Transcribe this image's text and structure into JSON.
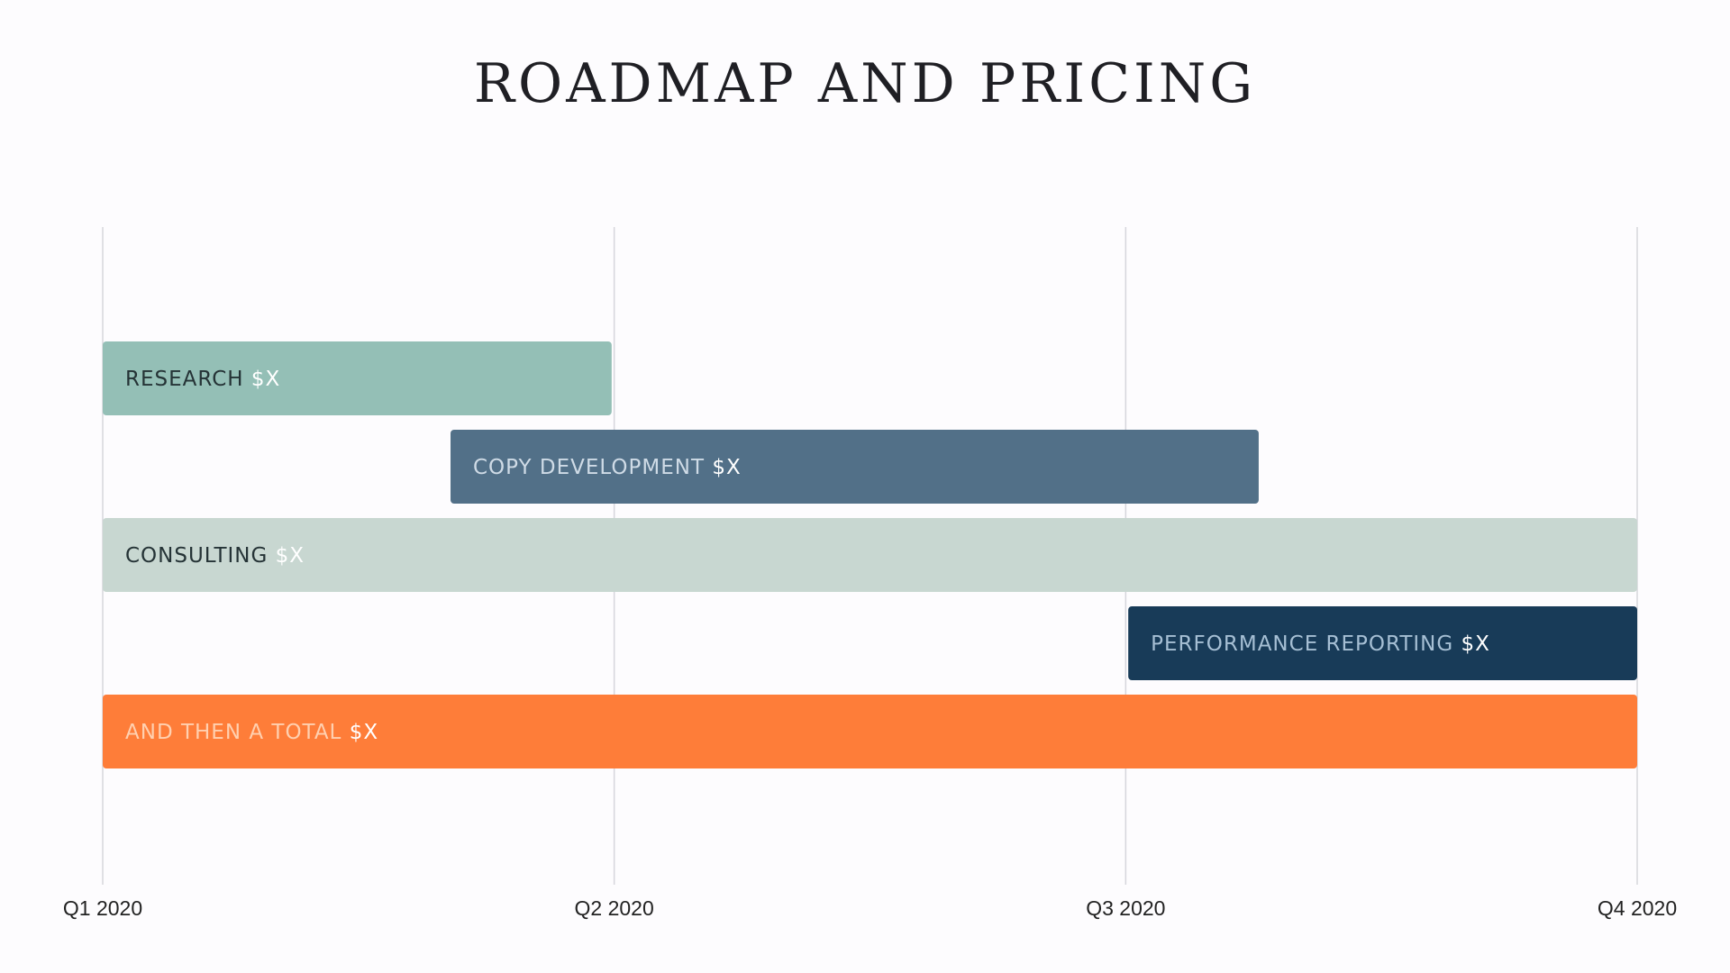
{
  "title": "ROADMAP AND PRICING",
  "chart_data": {
    "type": "gantt",
    "x_ticks": [
      "Q1 2020",
      "Q2 2020",
      "Q3 2020",
      "Q4 2020"
    ],
    "x_range": [
      0,
      3
    ],
    "grid": true,
    "tasks": [
      {
        "label": "RESEARCH",
        "price": "$X",
        "start": 0,
        "end": 0.995,
        "color": "#94bfb6",
        "label_color": "#253336",
        "price_color": "#ffffff"
      },
      {
        "label": "COPY DEVELOPMENT",
        "price": "$X",
        "start": 0.68,
        "end": 2.26,
        "color": "#527088",
        "label_color": "#cfdbe6",
        "price_color": "#ffffff"
      },
      {
        "label": "CONSULTING",
        "price": "$X",
        "start": 0,
        "end": 3,
        "color": "#c8d7d1",
        "label_color": "#253336",
        "price_color": "#ffffff"
      },
      {
        "label": "PERFORMANCE REPORTING",
        "price": "$X",
        "start": 2.005,
        "end": 3,
        "color": "#183b58",
        "label_color": "#a6bfd4",
        "price_color": "#ffffff"
      },
      {
        "label": "AND THEN A TOTAL",
        "price": "$X",
        "start": 0,
        "end": 3,
        "color": "#fe7d39",
        "label_color": "#ffd0b0",
        "price_color": "#ffffff"
      }
    ],
    "gridline_color": "#d6d6dc",
    "tick_label_color": "#222222"
  }
}
